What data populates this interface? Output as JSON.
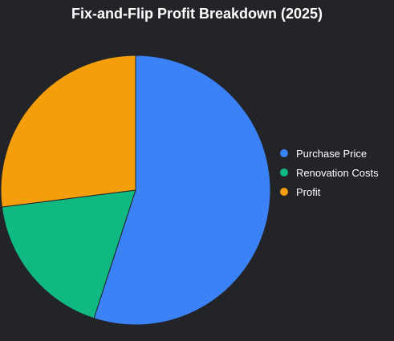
{
  "chart_data": {
    "type": "pie",
    "title": "Fix-and-Flip Profit Breakdown (2025)",
    "categories": [
      "Purchase Price",
      "Renovation Costs",
      "Profit"
    ],
    "values": [
      55,
      18,
      27
    ],
    "colors": [
      "#3b82f6",
      "#10b981",
      "#f59e0b"
    ],
    "legend_position": "right",
    "background": "#232427"
  }
}
